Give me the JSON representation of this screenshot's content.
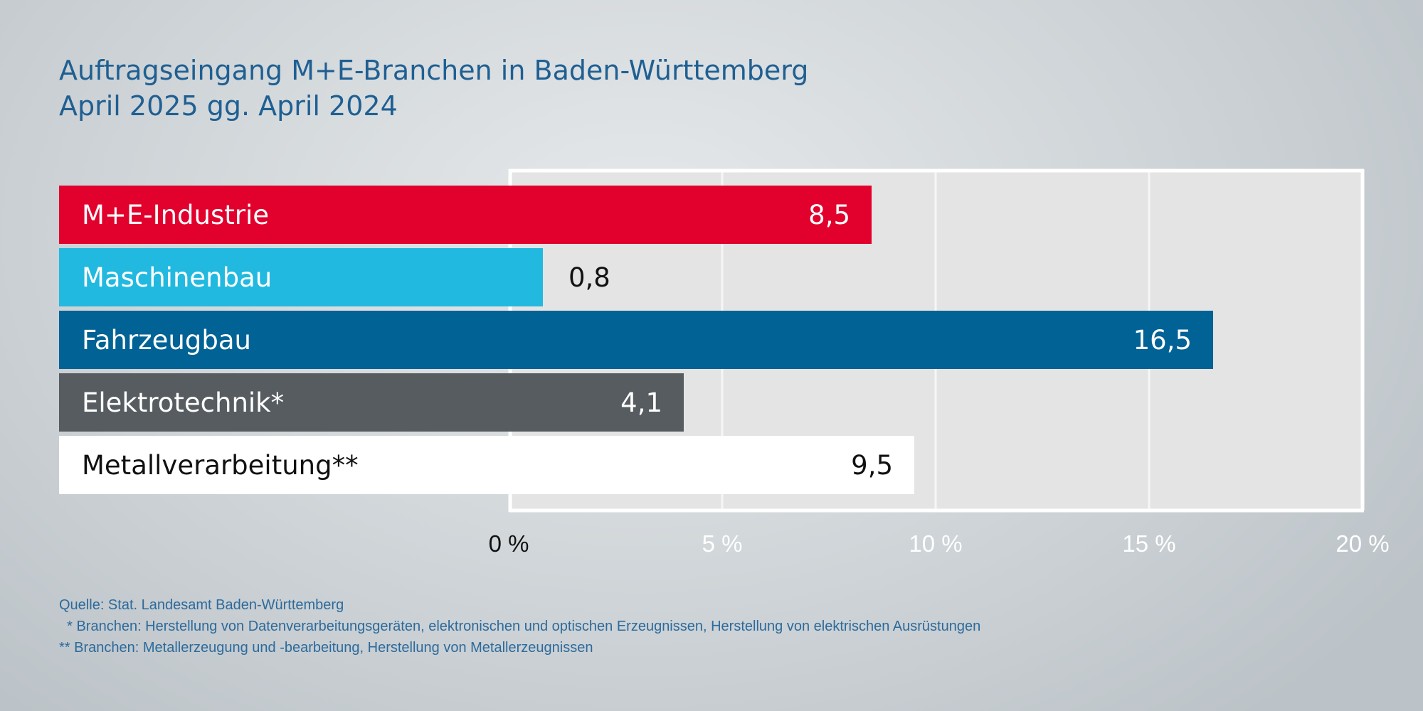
{
  "chart_data": {
    "type": "bar",
    "orientation": "horizontal",
    "title": "Auftragseingang M+E-Branchen in Baden-Württemberg",
    "subtitle": "April 2025 gg. April 2024",
    "categories": [
      "M+E-Industrie",
      "Maschinenbau",
      "Fahrzeugbau",
      "Elektrotechnik*",
      "Metallverarbeitung**"
    ],
    "values": [
      8.5,
      0.8,
      16.5,
      4.1,
      9.5
    ],
    "value_labels": [
      "8,5",
      "0,8",
      "16,5",
      "4,1",
      "9,5"
    ],
    "xlim": [
      0,
      20
    ],
    "xticks": [
      0,
      5,
      10,
      15,
      20
    ],
    "xtick_labels": [
      "0 %",
      "5 %",
      "10 %",
      "15 %",
      "20 %"
    ],
    "xlabel": "",
    "ylabel": "",
    "grid": true,
    "colors": [
      "#e2002d",
      "#21b9e0",
      "#006295",
      "#575c60",
      "#ffffff"
    ],
    "label_colors": [
      "#ffffff",
      "#ffffff",
      "#ffffff",
      "#ffffff",
      "#111111"
    ],
    "value_label_colors": [
      "#ffffff",
      "#111111",
      "#ffffff",
      "#ffffff",
      "#111111"
    ]
  },
  "footnotes": {
    "source": "Quelle: Stat. Landesamt Baden-Württemberg",
    "note1": "  * Branchen: Herstellung von Datenverarbeitungsgeräten, elektronischen und optischen Erzeugnissen, Herstellung von elektrischen Ausrüstungen",
    "note2": "** Branchen: Metallerzeugung und -bearbeitung, Herstellung von Metallerzeugnissen"
  }
}
